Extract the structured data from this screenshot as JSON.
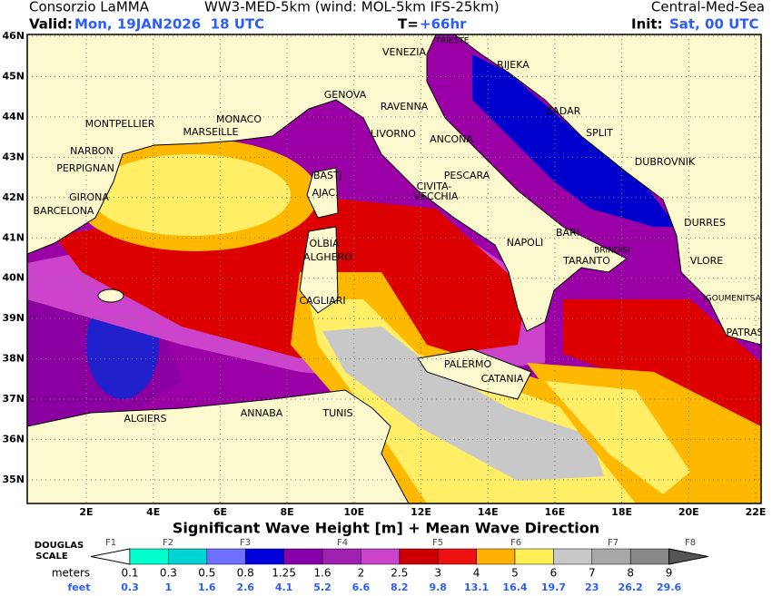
{
  "header": {
    "producer": "Consorzio LaMMA",
    "model": "WW3-MED-5km (wind: MOL-5km IFS-25km)",
    "domain": "Central-Med-Sea",
    "valid_label": "Valid:",
    "valid_value": "Mon, 19JAN2026  18 UTC",
    "lead_label": "T=",
    "lead_value": "+66hr",
    "init_label": "Init:",
    "init_value": "Sat, 00 UTC"
  },
  "map": {
    "lat_labels": [
      "46N",
      "45N",
      "44N",
      "43N",
      "42N",
      "41N",
      "40N",
      "39N",
      "38N",
      "37N",
      "36N",
      "35N"
    ],
    "lon_labels": [
      "2E",
      "4E",
      "6E",
      "8E",
      "10E",
      "12E",
      "14E",
      "16E",
      "18E",
      "20E",
      "22E"
    ],
    "cities": [
      "TRIESTE",
      "VENEZIA",
      "RIJEKA",
      "GENOVA",
      "RAVENNA",
      "ZADAR",
      "MONTPELLIER",
      "MONACO",
      "MARSEILLE",
      "LIVORNO",
      "ANCONA",
      "SPLIT",
      "NARBON",
      "DUBROVNIK",
      "PERPIGNAN",
      "BASTJ",
      "PESCARA",
      "CIVITA-",
      "VECCHIA",
      "AJAC.",
      "GIRONA",
      "BARCELONA",
      "DURRES",
      "BARI",
      "NAPOLI",
      "OLBIA",
      "BRINDISI",
      "ALGHERO",
      "TARANTO",
      "VLORE",
      "IGOUMENITSA",
      "CAGLIARI",
      "PATRAS",
      "PALERMO",
      "CATANIA",
      "ALGIERS",
      "ANNABA",
      "TUNIS"
    ]
  },
  "legend": {
    "title": "Significant Wave Height [m] + Mean Wave Direction",
    "scale_line1": "DOUGLAS",
    "scale_line2": "SCALE",
    "forces": [
      "F1",
      "F2",
      "F3",
      "F4",
      "F5",
      "F6",
      "F7",
      "F8"
    ],
    "meters_label": "meters",
    "meters": [
      "0.1",
      "0.3",
      "0.5",
      "0.8",
      "1.25",
      "1.6",
      "2",
      "2.5",
      "3",
      "4",
      "5",
      "6",
      "7",
      "8",
      "9"
    ],
    "feet_label": "feet",
    "feet": [
      "0.3",
      "1",
      "1.6",
      "2.6",
      "4.1",
      "5.2",
      "6.6",
      "8.2",
      "9.8",
      "13.1",
      "16.4",
      "19.7",
      "23",
      "26.2",
      "29.6"
    ]
  }
}
